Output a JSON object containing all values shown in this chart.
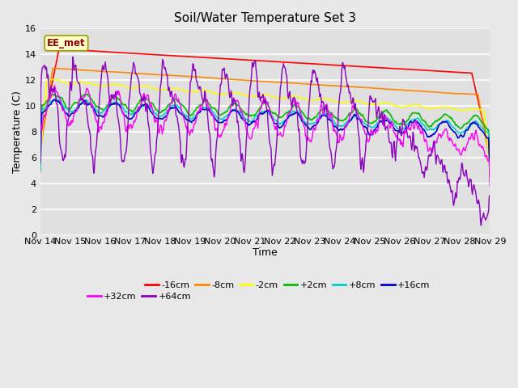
{
  "title": "Soil/Water Temperature Set 3",
  "xlabel": "Time",
  "ylabel": "Temperature (C)",
  "background_color": "#e8e8e8",
  "plot_bg_color": "#e0e0e0",
  "ylim": [
    0,
    16
  ],
  "yticks": [
    0,
    2,
    4,
    6,
    8,
    10,
    12,
    14,
    16
  ],
  "x_labels": [
    "Nov 14",
    "Nov 15",
    "Nov 16",
    "Nov 17",
    "Nov 18",
    "Nov 19",
    "Nov 20",
    "Nov 21",
    "Nov 22",
    "Nov 23",
    "Nov 24",
    "Nov 25",
    "Nov 26",
    "Nov 27",
    "Nov 28",
    "Nov 29"
  ],
  "n_days": 15,
  "annotation_text": "EE_met",
  "annotation_bg": "#ffffcc",
  "annotation_border": "#999900",
  "series_order": [
    "-16cm",
    "-8cm",
    "-2cm",
    "+2cm",
    "+8cm",
    "+16cm",
    "+32cm",
    "+64cm"
  ],
  "series": {
    "-16cm": {
      "color": "#ff0000",
      "lw": 1.2
    },
    "-8cm": {
      "color": "#ff8800",
      "lw": 1.2
    },
    "-2cm": {
      "color": "#ffff00",
      "lw": 1.2
    },
    "+2cm": {
      "color": "#00bb00",
      "lw": 1.2
    },
    "+8cm": {
      "color": "#00cccc",
      "lw": 1.2
    },
    "+16cm": {
      "color": "#0000cc",
      "lw": 1.2
    },
    "+32cm": {
      "color": "#ff00ff",
      "lw": 1.0
    },
    "+64cm": {
      "color": "#8800bb",
      "lw": 1.0
    }
  },
  "legend_ncol_row1": 6,
  "legend_ncol_row2": 2
}
